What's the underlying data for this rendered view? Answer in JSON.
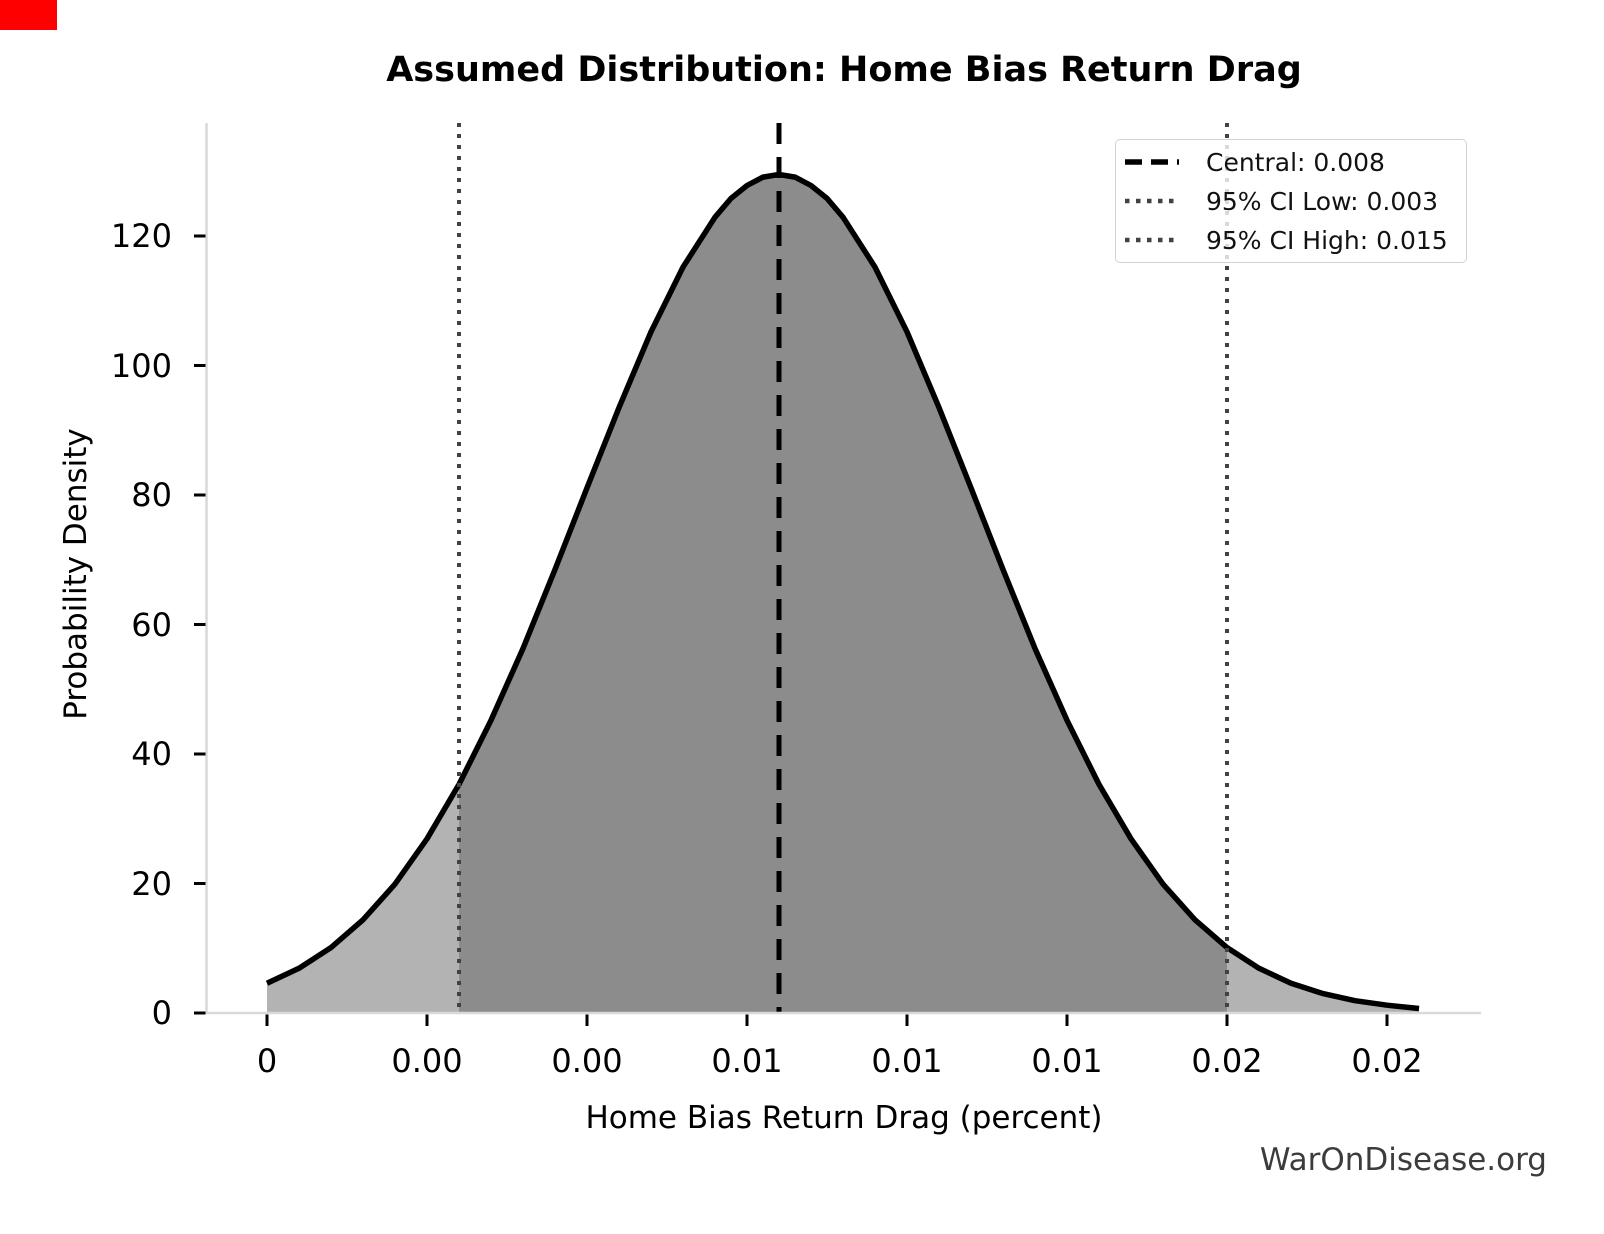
{
  "red_square": {
    "color": "#ff0000"
  },
  "chart_data": {
    "type": "area",
    "title": "Assumed Distribution: Home Bias Return Drag",
    "xlabel": "Home Bias Return Drag (percent)",
    "ylabel": "Probability Density",
    "watermark": "WarOnDisease.org",
    "grid": false,
    "legend_position": "upper right",
    "xlim": [
      -0.00095,
      0.01897
    ],
    "ylim": [
      0,
      137.5
    ],
    "x_ticks": [
      {
        "value": 0.0,
        "label": "0"
      },
      {
        "value": 0.0025,
        "label": "0.00"
      },
      {
        "value": 0.005,
        "label": "0.00"
      },
      {
        "value": 0.0075,
        "label": "0.01"
      },
      {
        "value": 0.01,
        "label": "0.01"
      },
      {
        "value": 0.0125,
        "label": "0.01"
      },
      {
        "value": 0.015,
        "label": "0.02"
      },
      {
        "value": 0.0175,
        "label": "0.02"
      }
    ],
    "y_ticks": [
      0,
      20,
      40,
      60,
      80,
      100,
      120
    ],
    "lines": {
      "central": {
        "value": 0.008,
        "label": "Central: 0.008",
        "style": "dashed",
        "color": "#000000"
      },
      "ci_low": {
        "value": 0.003,
        "label": "95% CI Low: 0.003",
        "style": "dotted",
        "color": "#424242"
      },
      "ci_high": {
        "value": 0.015,
        "label": "95% CI High: 0.015",
        "style": "dotted",
        "color": "#424242"
      }
    },
    "fills": {
      "outside_ci": "#b3b3b3",
      "inside_ci": "#8c8c8c"
    },
    "curve_color": "#000000",
    "axis_spine_color": "#d9d9d9",
    "curve": {
      "x": [
        0.0,
        0.0005,
        0.001,
        0.0015,
        0.002,
        0.0025,
        0.003,
        0.0035,
        0.004,
        0.0045,
        0.005,
        0.0055,
        0.006,
        0.0065,
        0.007,
        0.00725,
        0.0075,
        0.00775,
        0.008,
        0.00825,
        0.0085,
        0.00875,
        0.009,
        0.0095,
        0.01,
        0.0105,
        0.011,
        0.0115,
        0.012,
        0.0125,
        0.013,
        0.0135,
        0.014,
        0.0145,
        0.015,
        0.0155,
        0.016,
        0.0165,
        0.017,
        0.0175,
        0.018
      ],
      "y": [
        4.6,
        6.9,
        10.1,
        14.4,
        19.9,
        26.9,
        35.3,
        45.2,
        56.3,
        68.5,
        81.1,
        93.5,
        105.2,
        115.2,
        122.9,
        125.8,
        127.8,
        129.1,
        129.5,
        129.1,
        127.8,
        125.8,
        122.9,
        115.2,
        105.2,
        93.5,
        81.1,
        68.5,
        56.3,
        45.2,
        35.3,
        26.9,
        19.9,
        14.4,
        10.1,
        6.9,
        4.6,
        3.0,
        1.9,
        1.2,
        0.7
      ]
    }
  }
}
